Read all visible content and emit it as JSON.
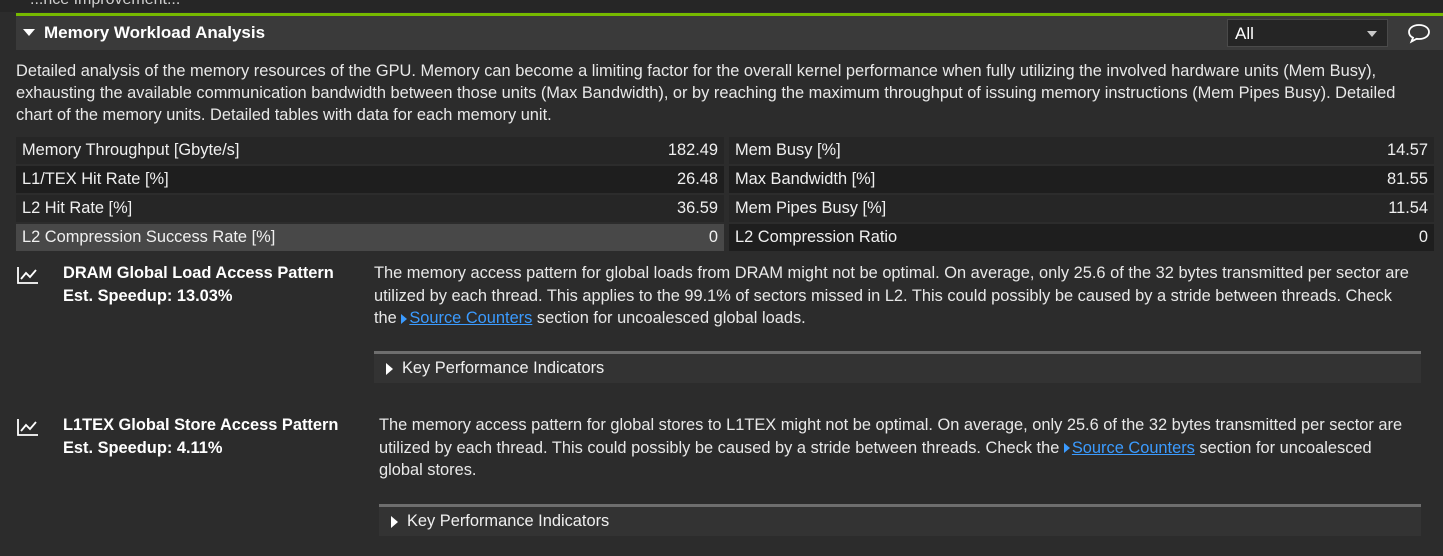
{
  "section": {
    "top_fragment": "...nce Improvement...",
    "title": "Memory Workload Analysis",
    "filter_value": "All",
    "accent_color": "#76b900",
    "description": "Detailed analysis of the memory resources of the GPU. Memory can become a limiting factor for the overall kernel performance when fully utilizing the involved hardware units (Mem Busy), exhausting the available communication bandwidth between those units (Max Bandwidth), or by reaching the maximum throughput of issuing memory instructions (Mem Pipes Busy). Detailed chart of the memory units. Detailed tables with data for each memory unit."
  },
  "metrics": {
    "rows": [
      {
        "left_label": "Memory Throughput [Gbyte/s]",
        "left_value": "182.49",
        "right_label": "Mem Busy [%]",
        "right_value": "14.57"
      },
      {
        "left_label": "L1/TEX Hit Rate [%]",
        "left_value": "26.48",
        "right_label": "Max Bandwidth [%]",
        "right_value": "81.55"
      },
      {
        "left_label": "L2 Hit Rate [%]",
        "left_value": "36.59",
        "right_label": "Mem Pipes Busy [%]",
        "right_value": "11.54"
      },
      {
        "left_label": "L2 Compression Success Rate [%]",
        "left_value": "0",
        "right_label": "L2 Compression Ratio",
        "right_value": "0"
      }
    ]
  },
  "rules": [
    {
      "title": "DRAM Global Load Access Pattern",
      "speedup": "Est. Speedup: 13.03%",
      "text_before": "The memory access pattern for global loads from DRAM might not be optimal. On average, only 25.6 of the 32 bytes transmitted per sector are utilized by each thread. This applies to the 99.1% of sectors missed in L2. This could possibly be caused by a stride between threads. Check the ",
      "link": "Source Counters",
      "text_after": " section for uncoalesced global loads.",
      "kpi_label": "Key Performance Indicators"
    },
    {
      "title": "L1TEX Global Store Access Pattern",
      "speedup": "Est. Speedup: 4.11%",
      "text_before": "The memory access pattern for global stores to L1TEX might not be optimal. On average, only 25.6 of the 32 bytes transmitted per sector are utilized by each thread. This could possibly be caused by a stride between threads. Check the ",
      "link": "Source Counters",
      "text_after": " section for uncoalesced global stores.",
      "kpi_label": "Key Performance Indicators"
    }
  ]
}
